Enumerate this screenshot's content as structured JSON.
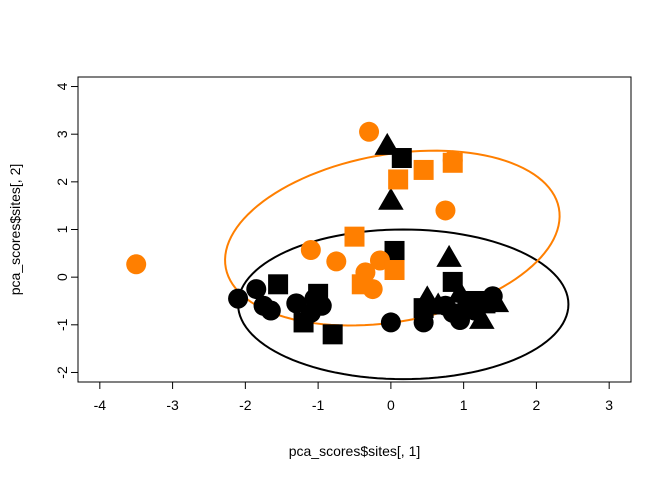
{
  "chart_data": {
    "type": "scatter",
    "title": "",
    "xlabel": "pca_scores$sites[, 1]",
    "ylabel": "pca_scores$sites[, 2]",
    "xlim": [
      -4.3,
      3.3
    ],
    "ylim": [
      -2.2,
      4.2
    ],
    "xticks": [
      -4,
      -3,
      -2,
      -1,
      0,
      1,
      2,
      3
    ],
    "yticks": [
      -2,
      -1,
      0,
      1,
      2,
      3,
      4
    ],
    "grid": false,
    "legend": "none",
    "colors": {
      "group1": "#000000",
      "group2": "#ff7f00"
    },
    "series": [
      {
        "color": "#000000",
        "marker": "circle",
        "points": [
          [
            -2.1,
            -0.45
          ],
          [
            -1.85,
            -0.25
          ],
          [
            -1.75,
            -0.6
          ],
          [
            -1.65,
            -0.7
          ],
          [
            -1.3,
            -0.55
          ],
          [
            -1.1,
            -0.75
          ],
          [
            -1.05,
            -0.45
          ],
          [
            -0.95,
            -0.6
          ],
          [
            0.0,
            -0.95
          ],
          [
            0.45,
            -0.95
          ],
          [
            0.75,
            -0.6
          ],
          [
            0.85,
            -0.75
          ],
          [
            0.95,
            -0.9
          ],
          [
            1.05,
            -0.55
          ],
          [
            1.15,
            -0.7
          ],
          [
            1.3,
            -0.5
          ],
          [
            1.4,
            -0.4
          ]
        ]
      },
      {
        "color": "#000000",
        "marker": "square",
        "points": [
          [
            -1.55,
            -0.15
          ],
          [
            -1.2,
            -0.95
          ],
          [
            -1.0,
            -0.35
          ],
          [
            -0.8,
            -1.2
          ],
          [
            0.05,
            0.55
          ],
          [
            0.45,
            -0.65
          ],
          [
            0.85,
            -0.1
          ],
          [
            1.15,
            -0.5
          ],
          [
            1.3,
            -0.55
          ],
          [
            0.15,
            2.5
          ]
        ]
      },
      {
        "color": "#000000",
        "marker": "triangle",
        "points": [
          [
            -0.05,
            2.75
          ],
          [
            0.0,
            1.6
          ],
          [
            0.8,
            0.4
          ],
          [
            0.5,
            -0.45
          ],
          [
            0.65,
            -0.6
          ],
          [
            0.95,
            -0.35
          ],
          [
            1.25,
            -0.9
          ],
          [
            1.45,
            -0.55
          ]
        ]
      },
      {
        "color": "#ff7f00",
        "marker": "circle",
        "points": [
          [
            -3.5,
            0.27
          ],
          [
            -1.1,
            0.57
          ],
          [
            -0.75,
            0.33
          ],
          [
            -0.3,
            3.05
          ],
          [
            0.75,
            1.4
          ],
          [
            0.85,
            2.45
          ],
          [
            -0.35,
            0.1
          ],
          [
            -0.15,
            0.35
          ],
          [
            -0.25,
            -0.25
          ]
        ]
      },
      {
        "color": "#ff7f00",
        "marker": "square",
        "points": [
          [
            -0.5,
            0.85
          ],
          [
            -0.4,
            -0.15
          ],
          [
            0.05,
            0.15
          ],
          [
            0.1,
            2.05
          ],
          [
            0.45,
            2.25
          ],
          [
            0.85,
            2.4
          ]
        ]
      }
    ],
    "ellipses": [
      {
        "color": "#000000",
        "center": [
          0.17,
          -0.57
        ],
        "rx": 2.27,
        "ry": 1.57,
        "angle_deg": 0
      },
      {
        "color": "#ff7f00",
        "center": [
          0.02,
          0.82
        ],
        "rx": 2.4,
        "ry": 1.7,
        "angle_deg": 24
      }
    ]
  }
}
